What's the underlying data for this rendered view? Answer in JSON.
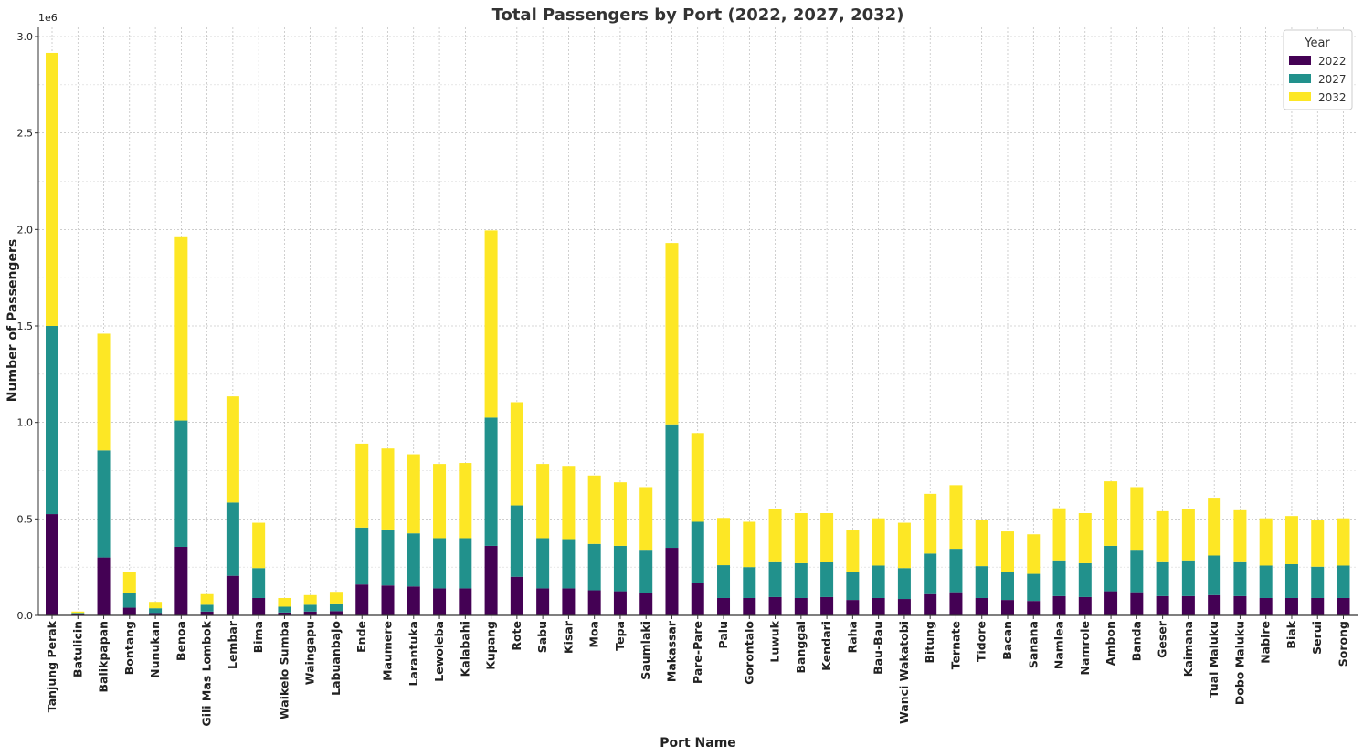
{
  "chart_data": {
    "type": "bar",
    "stacked": true,
    "title": "Total Passengers by Port (2022, 2027, 2032)",
    "xlabel": "Port Name",
    "ylabel": "Number of Passengers",
    "y_offset_label": "1e6",
    "ylim": [
      0,
      3000000
    ],
    "yticks": [
      0,
      500000,
      1000000,
      1500000,
      2000000,
      2500000,
      3000000
    ],
    "ytick_labels": [
      "0.0",
      "0.5",
      "1.0",
      "1.5",
      "2.0",
      "2.5",
      "3.0"
    ],
    "grid": true,
    "legend_title": "Year",
    "legend_position": "top-right",
    "categories": [
      "Tanjung Perak",
      "Batulicin",
      "Balikpapan",
      "Bontang",
      "Nunukan",
      "Benoa",
      "Gili Mas Lombok",
      "Lembar",
      "Bima",
      "Waikelo Sumba",
      "Waingapu",
      "Labuanbajo",
      "Ende",
      "Maumere",
      "Larantuka",
      "Lewoleba",
      "Kalabahi",
      "Kupang",
      "Rote",
      "Sabu",
      "Kisar",
      "Moa",
      "Tepa",
      "Saumlaki",
      "Makassar",
      "Pare-Pare",
      "Palu",
      "Gorontalo",
      "Luwuk",
      "Banggai",
      "Kendari",
      "Raha",
      "Bau-Bau",
      "Wanci Wakatobi",
      "Bitung",
      "Ternate",
      "Tidore",
      "Bacan",
      "Sanana",
      "Namlea",
      "Namrole",
      "Ambon",
      "Banda",
      "Geser",
      "Kaimana",
      "Tual Maluku",
      "Dobo Maluku",
      "Nabire",
      "Biak",
      "Serui",
      "Sorong"
    ],
    "series": [
      {
        "name": "2022",
        "color": "#440154",
        "values": [
          525000,
          5000,
          300000,
          40000,
          12000,
          355000,
          20000,
          205000,
          90000,
          15000,
          20000,
          22000,
          160000,
          155000,
          150000,
          140000,
          140000,
          360000,
          200000,
          140000,
          140000,
          130000,
          125000,
          115000,
          350000,
          170000,
          90000,
          90000,
          95000,
          90000,
          95000,
          80000,
          90000,
          85000,
          110000,
          120000,
          90000,
          80000,
          75000,
          100000,
          95000,
          125000,
          120000,
          100000,
          100000,
          105000,
          100000,
          90000,
          90000,
          90000,
          90000
        ]
      },
      {
        "name": "2027",
        "color": "#21918c",
        "values": [
          975000,
          8000,
          555000,
          78000,
          25000,
          655000,
          35000,
          380000,
          155000,
          30000,
          35000,
          40000,
          295000,
          290000,
          275000,
          260000,
          260000,
          665000,
          370000,
          260000,
          255000,
          240000,
          235000,
          225000,
          640000,
          315000,
          170000,
          160000,
          185000,
          180000,
          180000,
          145000,
          168000,
          160000,
          210000,
          225000,
          165000,
          145000,
          140000,
          185000,
          175000,
          235000,
          220000,
          180000,
          185000,
          205000,
          180000,
          168000,
          175000,
          162000,
          168000
        ]
      },
      {
        "name": "2032",
        "color": "#fde725",
        "values": [
          1415000,
          7000,
          605000,
          107000,
          33000,
          950000,
          55000,
          550000,
          235000,
          45000,
          50000,
          60000,
          435000,
          420000,
          410000,
          385000,
          390000,
          970000,
          535000,
          385000,
          380000,
          355000,
          330000,
          325000,
          940000,
          460000,
          245000,
          235000,
          270000,
          260000,
          255000,
          215000,
          245000,
          235000,
          310000,
          330000,
          240000,
          210000,
          205000,
          270000,
          260000,
          335000,
          325000,
          260000,
          265000,
          300000,
          265000,
          245000,
          250000,
          240000,
          245000
        ]
      }
    ]
  }
}
